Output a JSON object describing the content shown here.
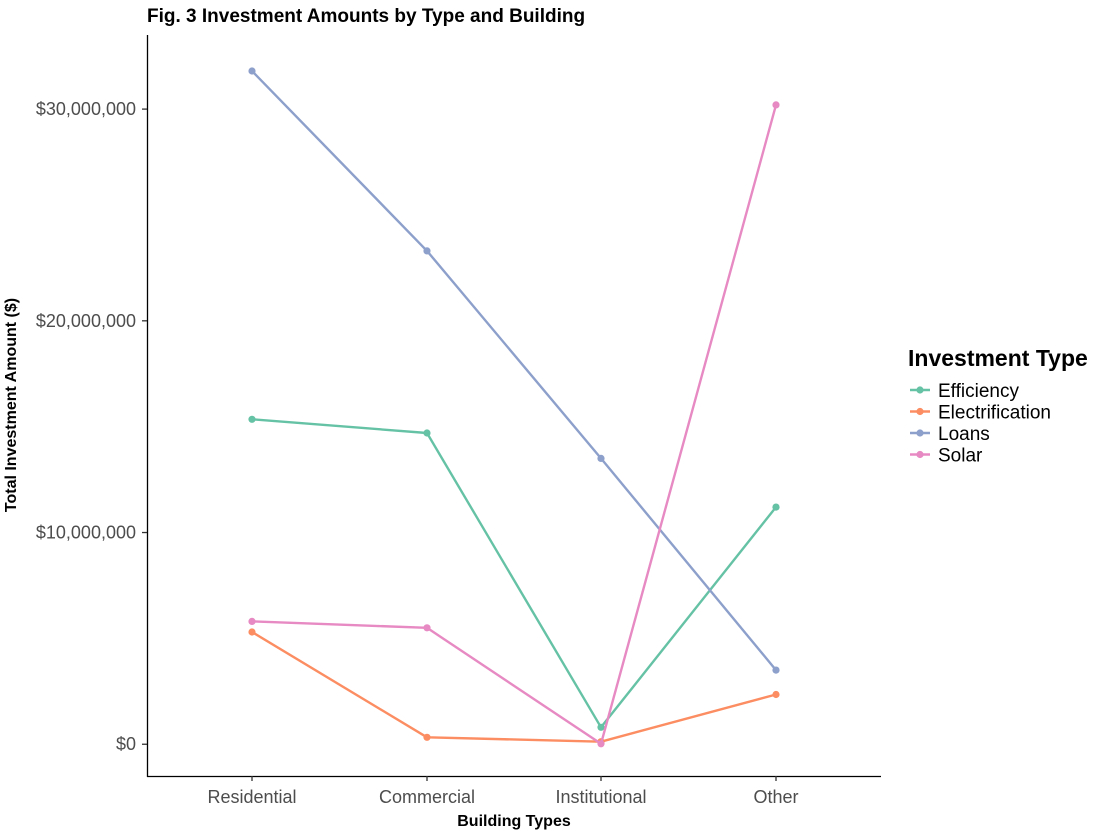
{
  "chart_data": {
    "type": "line",
    "title": "Fig. 3 Investment Amounts by Type and Building",
    "xlabel": "Building Types",
    "ylabel": "Total Investment Amount ($)",
    "categories": [
      "Residential",
      "Commercial",
      "Institutional",
      "Other"
    ],
    "ylim": [
      -1500000,
      33500000
    ],
    "yticks": [
      0,
      10000000,
      20000000,
      30000000
    ],
    "ytick_labels": [
      "$0",
      "$10,000,000",
      "$20,000,000",
      "$30,000,000"
    ],
    "grid": false,
    "legend": {
      "title": "Investment Type",
      "position": "right"
    },
    "series": [
      {
        "name": "Efficiency",
        "color": "#66c2a5",
        "values": [
          15350000,
          14700000,
          800000,
          11200000
        ]
      },
      {
        "name": "Electrification",
        "color": "#fc8d62",
        "values": [
          5300000,
          330000,
          120000,
          2350000
        ]
      },
      {
        "name": "Loans",
        "color": "#8da0cb",
        "values": [
          31800000,
          23300000,
          13500000,
          3500000
        ]
      },
      {
        "name": "Solar",
        "color": "#e78ac3",
        "values": [
          5800000,
          5500000,
          20000,
          30200000
        ]
      }
    ]
  }
}
